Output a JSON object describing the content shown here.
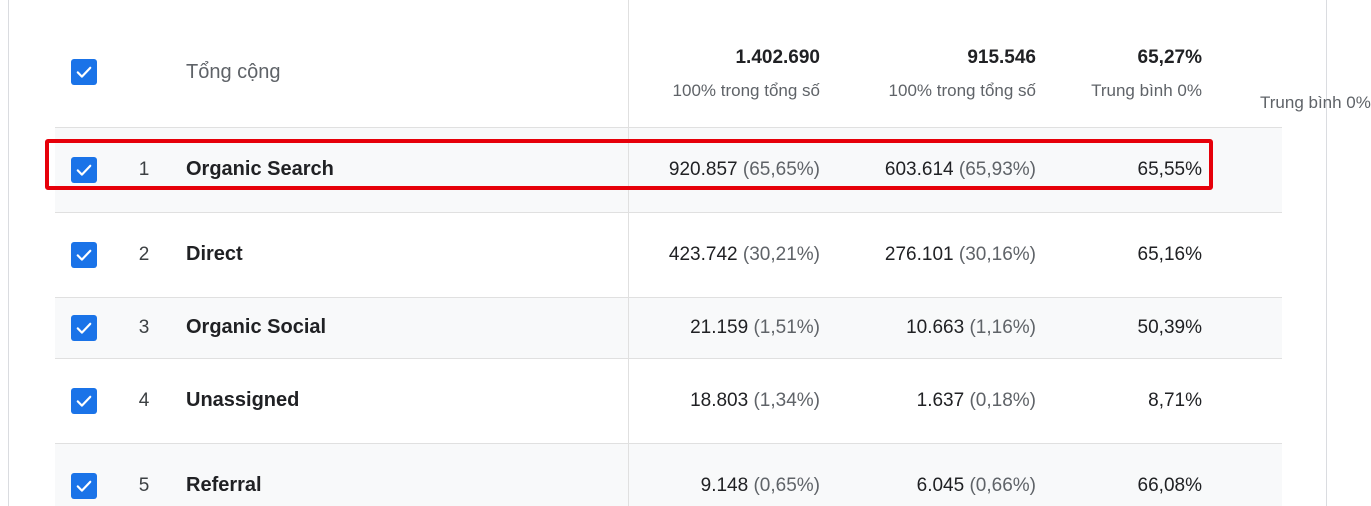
{
  "header": {
    "title": "Tổng cộng",
    "totals": [
      {
        "value": "1.402.690",
        "sub": "100% trong tổng số"
      },
      {
        "value": "915.546",
        "sub": "100% trong tổng số"
      },
      {
        "value": "65,27%",
        "sub": "Trung bình 0%"
      }
    ],
    "partial_column_label": "Trung bình 0%"
  },
  "rows": [
    {
      "index": "1",
      "name": "Organic Search",
      "c1": "920.857",
      "c1_pct": "(65,65%)",
      "c2": "603.614",
      "c2_pct": "(65,93%)",
      "c3": "65,55%"
    },
    {
      "index": "2",
      "name": "Direct",
      "c1": "423.742",
      "c1_pct": "(30,21%)",
      "c2": "276.101",
      "c2_pct": "(30,16%)",
      "c3": "65,16%"
    },
    {
      "index": "3",
      "name": "Organic Social",
      "c1": "21.159",
      "c1_pct": "(1,51%)",
      "c2": "10.663",
      "c2_pct": "(1,16%)",
      "c3": "50,39%"
    },
    {
      "index": "4",
      "name": "Unassigned",
      "c1": "18.803",
      "c1_pct": "(1,34%)",
      "c2": "1.637",
      "c2_pct": "(0,18%)",
      "c3": "8,71%"
    },
    {
      "index": "5",
      "name": "Referral",
      "c1": "9.148",
      "c1_pct": "(0,65%)",
      "c2": "6.045",
      "c2_pct": "(0,66%)",
      "c3": "66,08%"
    }
  ],
  "colors": {
    "checkbox": "#1a73e8",
    "highlight": "#e6000a",
    "row_shade": "#f8f9fa"
  }
}
